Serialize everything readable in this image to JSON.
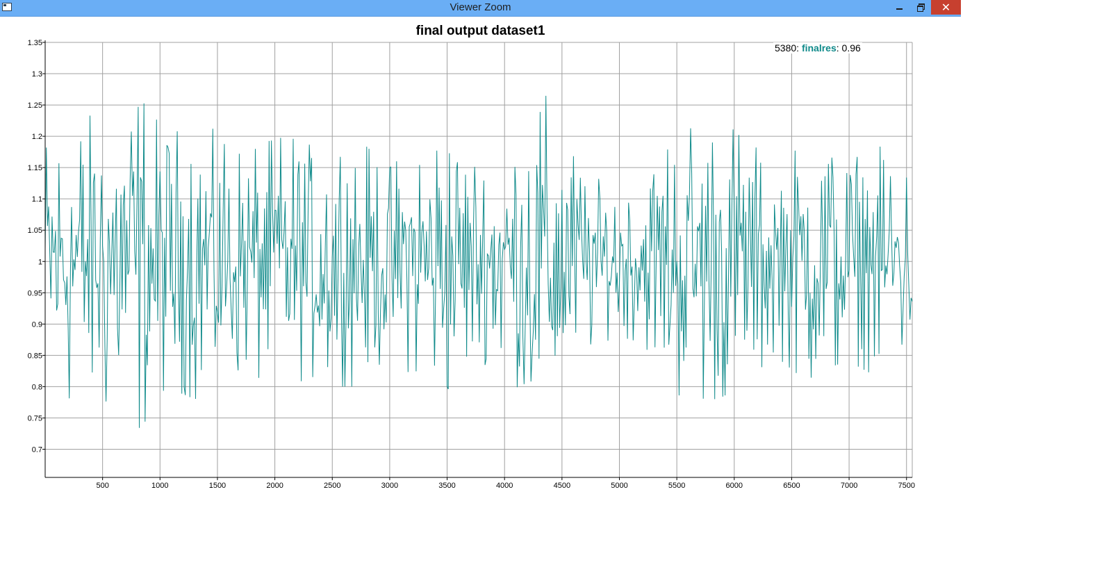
{
  "window": {
    "title": "Viewer Zoom",
    "close_label": "✕"
  },
  "readout": {
    "x": "5380",
    "sep1": ": ",
    "series": "finalres",
    "sep2": ": ",
    "value": "0.96"
  },
  "colors": {
    "titlebar": "#6aaef5",
    "series": "#0f8a8a",
    "grid": "#a0a0a0",
    "close_button": "#c7402f"
  },
  "chart_data": {
    "type": "line",
    "title": "final output dataset1",
    "xlabel": "",
    "ylabel": "",
    "xlim": [
      0,
      7550
    ],
    "ylim": [
      0.655,
      1.35
    ],
    "x_ticks": [
      500,
      1000,
      1500,
      2000,
      2500,
      3000,
      3500,
      4000,
      4500,
      5000,
      5500,
      6000,
      6500,
      7000,
      7500
    ],
    "y_ticks": [
      0.7,
      0.75,
      0.8,
      0.85,
      0.9,
      0.95,
      1,
      1.05,
      1.1,
      1.15,
      1.2,
      1.25,
      1.3,
      1.35
    ],
    "grid": true,
    "series": [
      {
        "name": "finalres",
        "color": "#0f8a8a",
        "point_step": 10,
        "x_start": 0,
        "y_min": 0.71,
        "y_max": 1.295,
        "envelope": {
          "x": [
            0,
            300,
            600,
            800,
            900,
            1050,
            1300,
            1500,
            1700,
            1900,
            2100,
            2400,
            2550,
            2700,
            3000,
            3300,
            3500,
            3750,
            4050,
            4250,
            4400,
            4500,
            4700,
            5000,
            5200,
            5450,
            5550,
            5900,
            6100,
            6350,
            6550,
            6800,
            7000,
            7200,
            7400,
            7550
          ],
          "half_amplitude": [
            0.2,
            0.23,
            0.24,
            0.27,
            0.25,
            0.2,
            0.22,
            0.21,
            0.17,
            0.19,
            0.2,
            0.18,
            0.2,
            0.2,
            0.15,
            0.2,
            0.21,
            0.16,
            0.18,
            0.25,
            0.27,
            0.2,
            0.14,
            0.12,
            0.13,
            0.2,
            0.22,
            0.22,
            0.2,
            0.15,
            0.18,
            0.2,
            0.16,
            0.18,
            0.19,
            0.13
          ]
        }
      }
    ]
  }
}
